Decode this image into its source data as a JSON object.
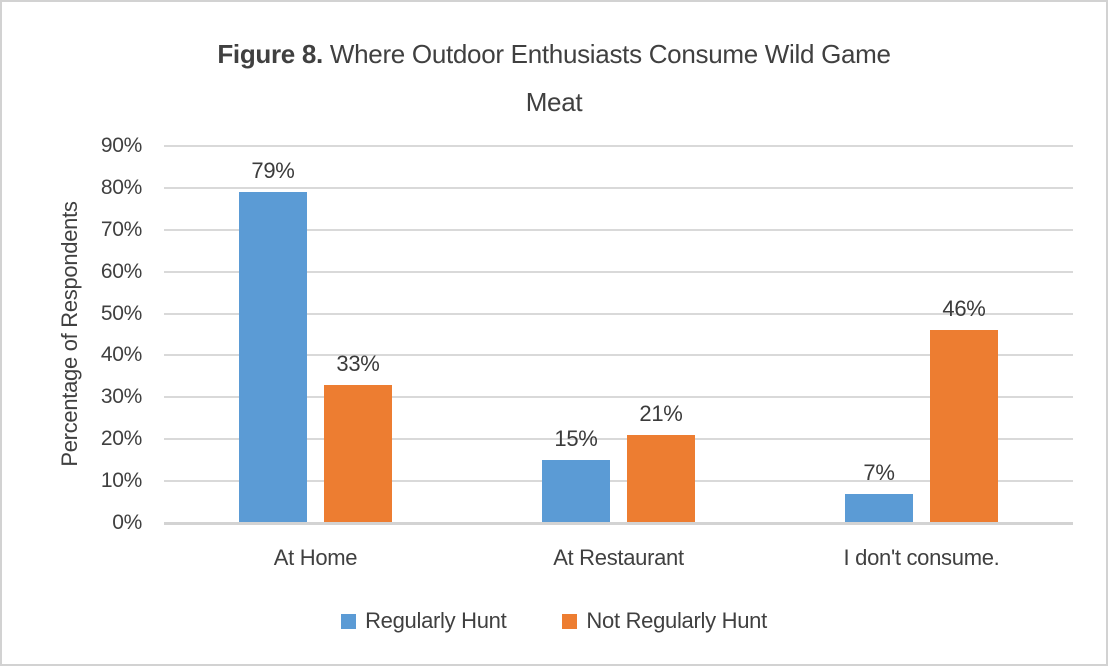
{
  "title": {
    "bold": "Figure 8.",
    "rest": " Where Outdoor Enthusiasts Consume Wild Game",
    "line2": "Meat"
  },
  "chart_data": {
    "type": "bar",
    "title": "Figure 8. Where Outdoor Enthusiasts Consume Wild Game Meat",
    "categories": [
      "At Home",
      "At Restaurant",
      "I don't consume."
    ],
    "series": [
      {
        "name": "Regularly Hunt",
        "color": "#5B9BD5",
        "values": [
          79,
          15,
          7
        ]
      },
      {
        "name": "Not Regularly Hunt",
        "color": "#ED7D31",
        "values": [
          33,
          21,
          46
        ]
      }
    ],
    "data_labels": [
      "79%",
      "33%",
      "15%",
      "21%",
      "7%",
      "46%"
    ],
    "xlabel": "",
    "ylabel": "Percentage of Respondents",
    "ylim": [
      0,
      90
    ],
    "ytick_step": 10,
    "ytick_labels": [
      "0%",
      "10%",
      "20%",
      "30%",
      "40%",
      "50%",
      "60%",
      "70%",
      "80%",
      "90%"
    ],
    "grid": true,
    "legend_position": "bottom"
  },
  "colors": {
    "text": "#404040",
    "gridline": "#D9D9D9",
    "axis_line": "#D3D3D3",
    "frame_border": "#D2D2D2",
    "background": "#FFFFFF"
  }
}
